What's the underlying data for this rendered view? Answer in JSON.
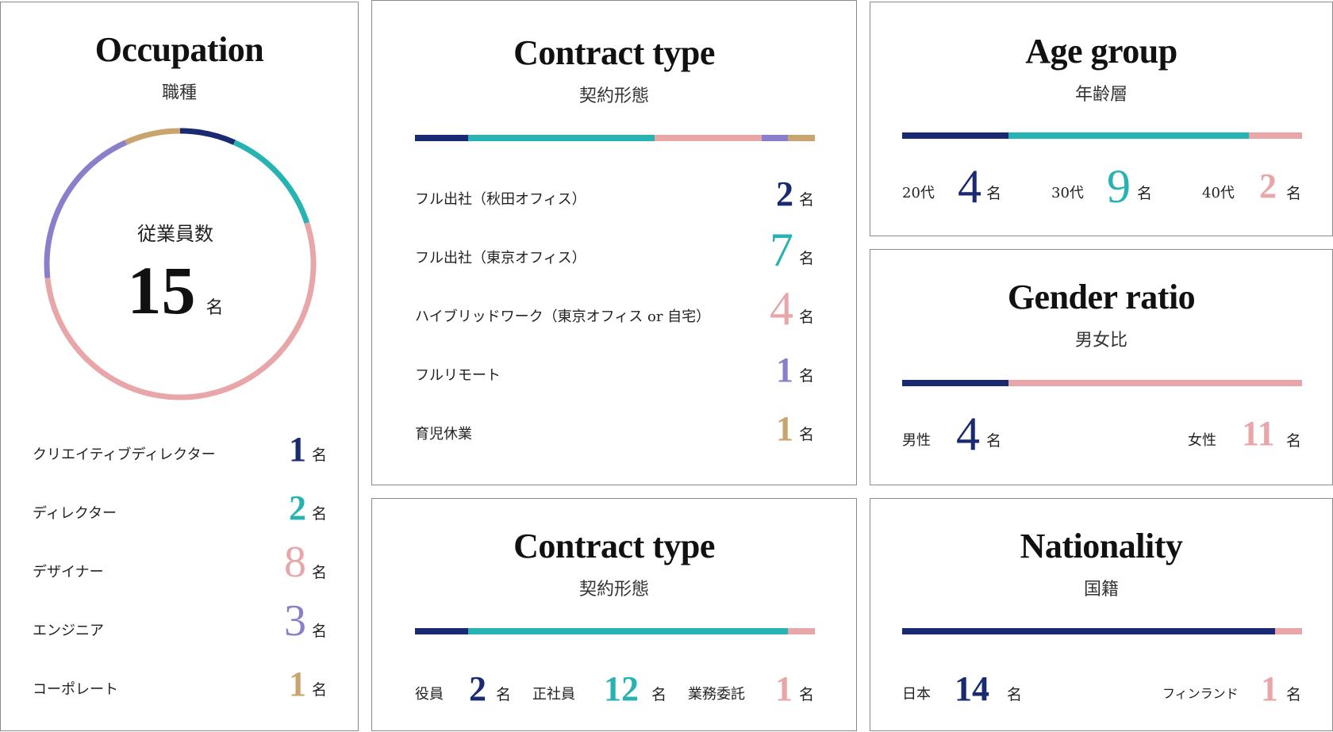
{
  "colors": {
    "navy": "#1a2a72",
    "teal": "#28b3b3",
    "pink": "#e8a6a8",
    "lavender": "#8a7fcb",
    "gold": "#c9a46e"
  },
  "occupation": {
    "title": "Occupation",
    "subtitle": "職種",
    "center_label": "従業員数",
    "total": "15",
    "total_unit": "名",
    "items": [
      {
        "label": "クリエイティブディレクター",
        "value": "1",
        "unit": "名",
        "color": "navy"
      },
      {
        "label": "ディレクター",
        "value": "2",
        "unit": "名",
        "color": "teal"
      },
      {
        "label": "デザイナー",
        "value": "8",
        "unit": "名",
        "color": "pink"
      },
      {
        "label": "エンジニア",
        "value": "3",
        "unit": "名",
        "color": "lavender"
      },
      {
        "label": "コーポレート",
        "value": "1",
        "unit": "名",
        "color": "gold"
      }
    ]
  },
  "contract_work": {
    "title": "Contract type",
    "subtitle": "契約形態",
    "items": [
      {
        "label": "フル出社（秋田オフィス）",
        "value": "2",
        "unit": "名",
        "color": "navy"
      },
      {
        "label": "フル出社（東京オフィス）",
        "value": "7",
        "unit": "名",
        "color": "teal"
      },
      {
        "label": "ハイブリッドワーク（東京オフィス or 自宅）",
        "value": "4",
        "unit": "名",
        "color": "pink"
      },
      {
        "label": "フルリモート",
        "value": "1",
        "unit": "名",
        "color": "lavender"
      },
      {
        "label": "育児休業",
        "value": "1",
        "unit": "名",
        "color": "gold"
      }
    ]
  },
  "contract_employment": {
    "title": "Contract type",
    "subtitle": "契約形態",
    "items": [
      {
        "label": "役員",
        "value": "2",
        "unit": "名",
        "color": "navy"
      },
      {
        "label": "正社員",
        "value": "12",
        "unit": "名",
        "color": "teal"
      },
      {
        "label": "業務委託",
        "value": "1",
        "unit": "名",
        "color": "pink"
      }
    ]
  },
  "age": {
    "title": "Age group",
    "subtitle": "年齢層",
    "items": [
      {
        "label": "20代",
        "value": "4",
        "unit": "名",
        "color": "navy"
      },
      {
        "label": "30代",
        "value": "9",
        "unit": "名",
        "color": "teal"
      },
      {
        "label": "40代",
        "value": "2",
        "unit": "名",
        "color": "pink"
      }
    ]
  },
  "gender": {
    "title": "Gender ratio",
    "subtitle": "男女比",
    "items": [
      {
        "label": "男性",
        "value": "4",
        "unit": "名",
        "color": "navy"
      },
      {
        "label": "女性",
        "value": "11",
        "unit": "名",
        "color": "pink"
      }
    ]
  },
  "nationality": {
    "title": "Nationality",
    "subtitle": "国籍",
    "items": [
      {
        "label": "日本",
        "value": "14",
        "unit": "名",
        "color": "navy"
      },
      {
        "label": "フィンランド",
        "value": "1",
        "unit": "名",
        "color": "pink"
      }
    ]
  }
}
